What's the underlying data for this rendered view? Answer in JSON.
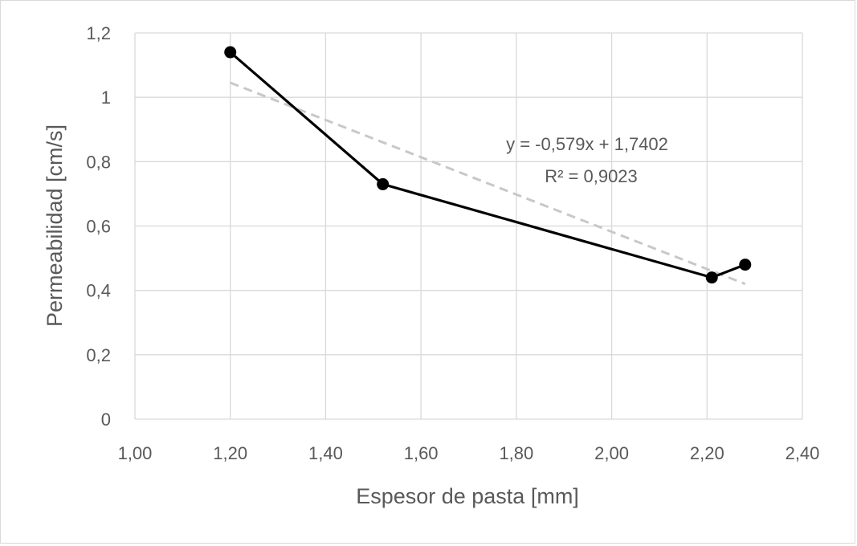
{
  "chart_data": {
    "type": "scatter",
    "xlabel": "Espesor de pasta [mm]",
    "ylabel": "Permeabilidad [cm/s]",
    "xlim": [
      1.0,
      2.4
    ],
    "ylim": [
      0,
      1.2
    ],
    "grid": true,
    "legend": "none",
    "x_ticks": [
      "1,00",
      "1,20",
      "1,40",
      "1,60",
      "1,80",
      "2,00",
      "2,20",
      "2,40"
    ],
    "y_ticks": [
      "0",
      "0,2",
      "0,4",
      "0,6",
      "0,8",
      "1",
      "1,2"
    ],
    "series": [
      {
        "points": [
          {
            "x": 1.2,
            "y": 1.14
          },
          {
            "x": 1.52,
            "y": 0.73
          },
          {
            "x": 2.21,
            "y": 0.44
          },
          {
            "x": 2.28,
            "y": 0.48
          }
        ],
        "color": "#000000"
      }
    ],
    "trendline": {
      "type": "linear",
      "slope": -0.579,
      "intercept": 1.7402,
      "x_range": [
        1.2,
        2.28
      ],
      "color": "#c8c8c8",
      "equation_label": "y = -0,579x  + 1,7402",
      "r2_label": "R² = 0,9023"
    }
  }
}
